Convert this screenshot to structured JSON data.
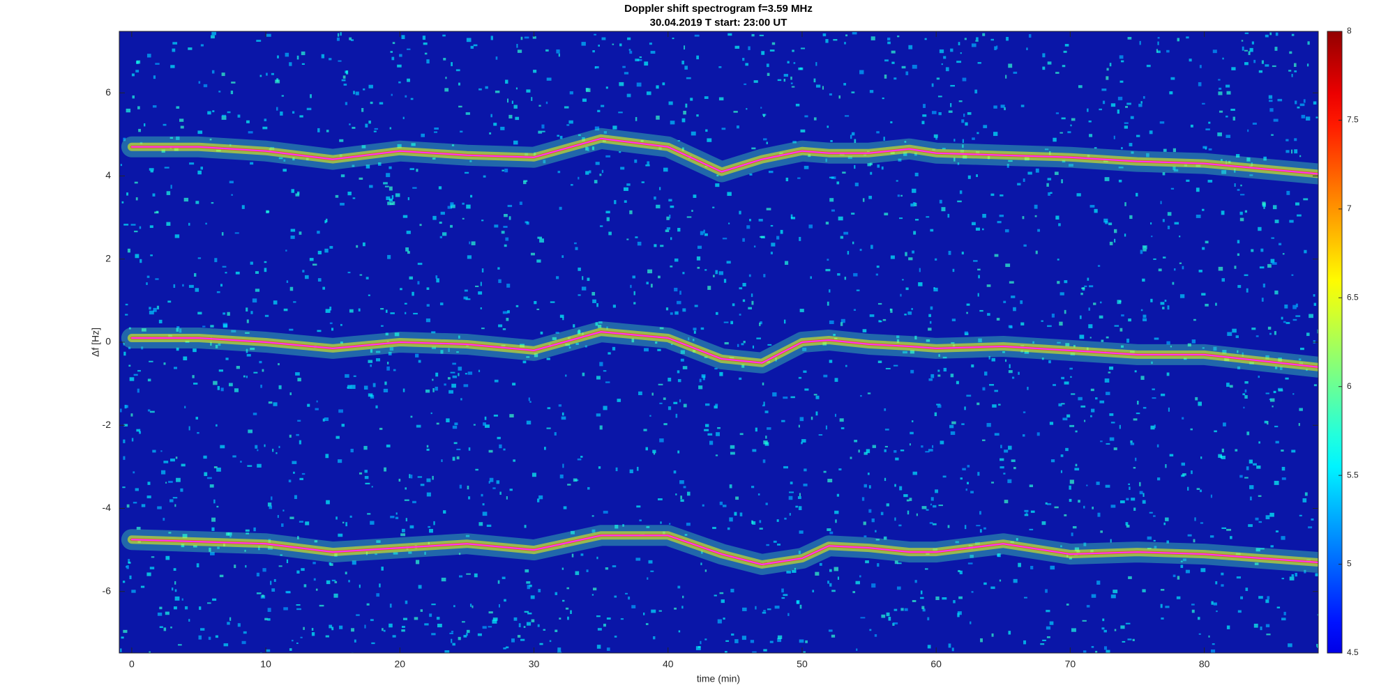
{
  "chart_data": {
    "type": "line",
    "title": "Doppler shift spectrogram f=3.59 MHz",
    "subtitle": "30.04.2019   T start: 23:00 UT",
    "x_label": "time (min)",
    "y_label": "Δf [Hz]",
    "xlim": [
      -0.93,
      88.5
    ],
    "xticks": [
      0,
      10,
      20,
      30,
      40,
      50,
      60,
      70,
      80
    ],
    "ylim": [
      -7.48,
      7.48
    ],
    "yticks": [
      -6,
      -4,
      -2,
      0,
      2,
      4,
      6
    ],
    "colorbar_lim": [
      4.5,
      8
    ],
    "colorbar_ticks": [
      4.5,
      5,
      5.5,
      6,
      6.5,
      7,
      7.5,
      8
    ],
    "colormap": "jet",
    "x": [
      0,
      5,
      10,
      15,
      20,
      25,
      30,
      35,
      40,
      44,
      47,
      50,
      52,
      55,
      58,
      60,
      65,
      70,
      75,
      80,
      88.5
    ],
    "series": [
      {
        "color": "#ff33ff",
        "values": [
          4.7,
          4.7,
          4.6,
          4.4,
          4.6,
          4.5,
          4.45,
          4.9,
          4.7,
          4.1,
          4.4,
          4.6,
          4.55,
          4.55,
          4.65,
          4.55,
          4.5,
          4.45,
          4.35,
          4.3,
          4.05
        ]
      },
      {
        "color": "#ff33ff",
        "values": [
          0.1,
          0.1,
          0.0,
          -0.15,
          0.0,
          -0.05,
          -0.2,
          0.25,
          0.1,
          -0.4,
          -0.5,
          0.0,
          0.05,
          -0.05,
          -0.1,
          -0.15,
          -0.1,
          -0.2,
          -0.3,
          -0.3,
          -0.6
        ]
      },
      {
        "color": "#ff33ff",
        "values": [
          -4.75,
          -4.8,
          -4.85,
          -5.05,
          -4.95,
          -4.85,
          -5.0,
          -4.65,
          -4.65,
          -5.1,
          -5.35,
          -5.2,
          -4.9,
          -4.95,
          -5.05,
          -5.05,
          -4.85,
          -5.1,
          -5.05,
          -5.1,
          -5.3
        ]
      }
    ]
  }
}
